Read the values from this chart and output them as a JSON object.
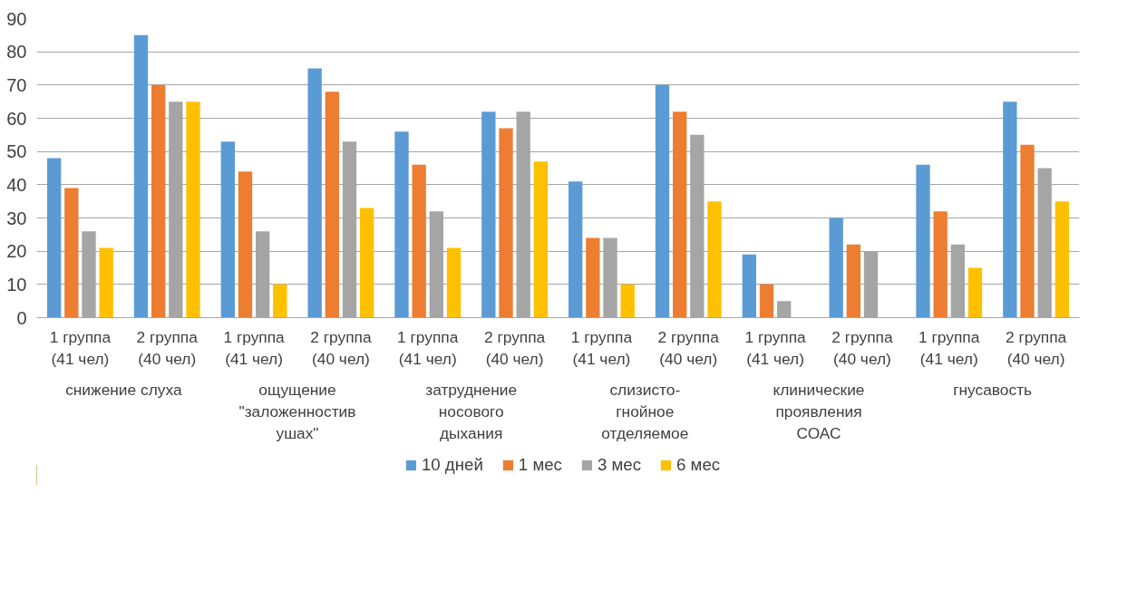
{
  "chart_data": {
    "type": "bar",
    "categories": [
      "1 группа (41 чел)",
      "2 группа (40 чел)",
      "1 группа (41 чел)",
      "2 группа (40 чел)",
      "1 группа (41 чел)",
      "2 группа (40 чел)",
      "1 группа (41 чел)",
      "2 группа (40 чел)",
      "1 группа (41 чел)",
      "2 группа (40 чел)",
      "1 группа (41 чел)",
      "2 группа (40 чел)"
    ],
    "annotations": [
      "снижение слуха",
      "ощущение \"заложенностив ушах\"",
      "затруднение носового дыхания",
      "слизисто-гнойное отделяемое",
      "клинические проявления СОАС",
      "гнусавость"
    ],
    "series": [
      {
        "name": "10 дней",
        "color": "#5b9bd5",
        "values": [
          48,
          85,
          53,
          75,
          56,
          62,
          41,
          70,
          19,
          30,
          46,
          65
        ]
      },
      {
        "name": "1 мес",
        "color": "#ed7d31",
        "values": [
          39,
          70,
          44,
          68,
          46,
          57,
          24,
          62,
          10,
          22,
          32,
          52
        ]
      },
      {
        "name": "3 мес",
        "color": "#a5a5a5",
        "values": [
          26,
          65,
          26,
          53,
          32,
          62,
          24,
          55,
          5,
          20,
          22,
          45
        ]
      },
      {
        "name": "6 мес",
        "color": "#ffc000",
        "values": [
          21,
          65,
          10,
          33,
          21,
          47,
          10,
          35,
          null,
          null,
          15,
          35
        ]
      }
    ],
    "ylim": [
      0,
      90
    ],
    "yticks": [
      0,
      10,
      20,
      30,
      40,
      50,
      60,
      70,
      80,
      90
    ],
    "grid": "y",
    "legend": "bottom"
  }
}
